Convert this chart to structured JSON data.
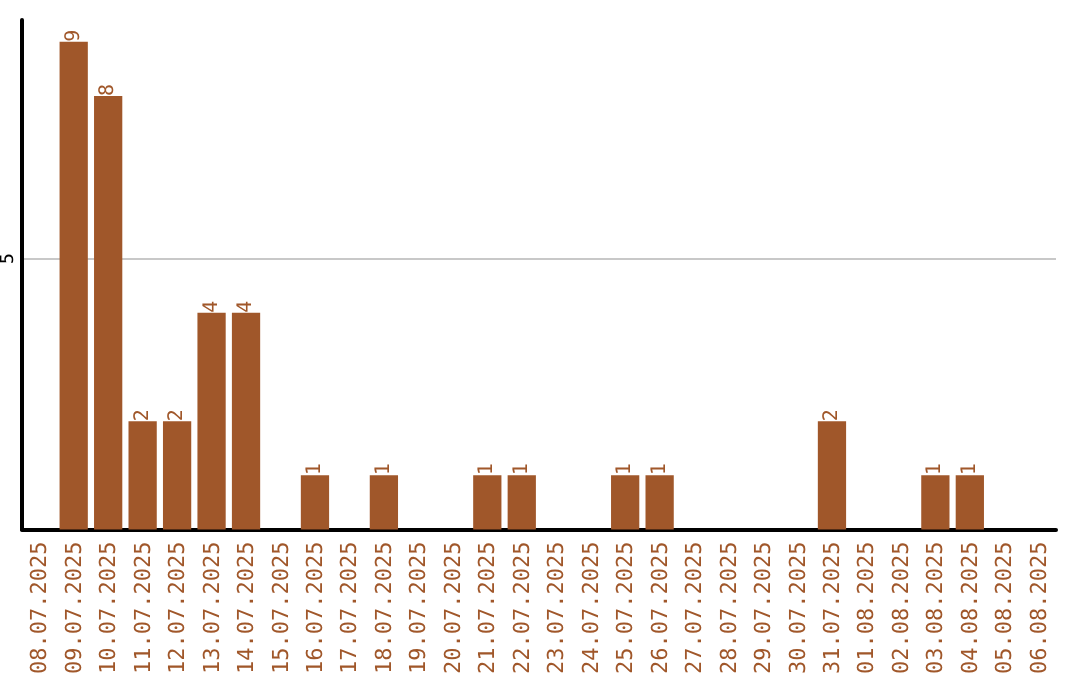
{
  "chart_data": {
    "type": "bar",
    "categories": [
      "08.07.2025",
      "09.07.2025",
      "10.07.2025",
      "11.07.2025",
      "12.07.2025",
      "13.07.2025",
      "14.07.2025",
      "15.07.2025",
      "16.07.2025",
      "17.07.2025",
      "18.07.2025",
      "19.07.2025",
      "20.07.2025",
      "21.07.2025",
      "22.07.2025",
      "23.07.2025",
      "24.07.2025",
      "25.07.2025",
      "26.07.2025",
      "27.07.2025",
      "28.07.2025",
      "29.07.2025",
      "30.07.2025",
      "31.07.2025",
      "01.08.2025",
      "02.08.2025",
      "03.08.2025",
      "04.08.2025",
      "05.08.2025",
      "06.08.2025"
    ],
    "values": [
      0,
      9,
      8,
      2,
      2,
      4,
      4,
      0,
      1,
      0,
      1,
      0,
      0,
      1,
      1,
      0,
      0,
      1,
      1,
      0,
      0,
      0,
      0,
      2,
      0,
      0,
      1,
      1,
      0,
      0
    ],
    "value_labels": [
      null,
      "9",
      "8",
      "2",
      "2",
      "4",
      "4",
      null,
      "1",
      null,
      "1",
      null,
      null,
      "1",
      "1",
      null,
      null,
      "1",
      "1",
      null,
      null,
      null,
      null,
      "2",
      null,
      null,
      "1",
      "1",
      null,
      null
    ],
    "color": "#a0572a",
    "ylim": [
      0,
      9.4
    ],
    "yticks": [
      5
    ],
    "grid": "y"
  }
}
